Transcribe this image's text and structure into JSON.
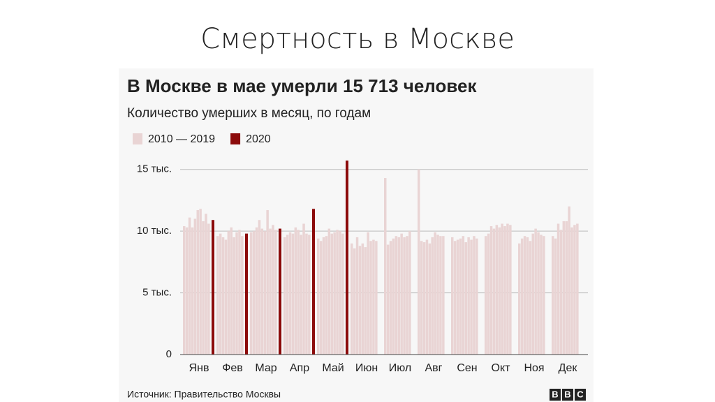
{
  "page_title": "Смертность в Москве",
  "source": "Источник: Правительство Москвы",
  "logo_letters": [
    "B",
    "B",
    "C"
  ],
  "chart_data": {
    "type": "bar",
    "title": "В Москве в мае умерли 15 713 человек",
    "subtitle": "Количество умерших в месяц, по годам",
    "categories": [
      "Янв",
      "Фев",
      "Мар",
      "Апр",
      "Май",
      "Июн",
      "Июл",
      "Авг",
      "Сен",
      "Окт",
      "Ноя",
      "Дек"
    ],
    "series": [
      {
        "name": "2010 — 2019",
        "color": "#e9d4d4",
        "values": [
          [
            10400,
            10300,
            11100,
            10300,
            11000,
            11700,
            11800,
            10800,
            11400,
            10600
          ],
          [
            9600,
            9800,
            9500,
            9300,
            10000,
            10300,
            9500,
            9900,
            10100,
            9600
          ],
          [
            9900,
            10000,
            10300,
            10900,
            10200,
            10000,
            11700,
            10200,
            10500,
            10100
          ],
          [
            9500,
            9700,
            9900,
            9800,
            10300,
            10100,
            9700,
            10600,
            9800,
            9700
          ],
          [
            9400,
            9200,
            9500,
            9600,
            10200,
            9800,
            9900,
            10100,
            10000,
            9800
          ],
          [
            9000,
            8600,
            9500,
            8800,
            9000,
            8700,
            9900,
            9200,
            9300,
            9200
          ],
          [
            14300,
            8900,
            9200,
            9400,
            9600,
            9500,
            9800,
            9500,
            9600,
            10000
          ],
          [
            15000,
            9200,
            9100,
            9300,
            9000,
            9500,
            9900,
            9700,
            9600,
            9600
          ],
          [
            9500,
            9200,
            9300,
            9400,
            9600,
            9100,
            9500,
            9300,
            9600,
            9400
          ],
          [
            9600,
            9800,
            10400,
            10200,
            10500,
            10300,
            10600,
            10400,
            10600,
            10500
          ],
          [
            9000,
            9400,
            9600,
            9500,
            9200,
            9800,
            10200,
            9900,
            9700,
            9600
          ],
          [
            9600,
            9400,
            10600,
            10100,
            10800,
            10800,
            12000,
            10300,
            10500,
            10600
          ]
        ]
      },
      {
        "name": "2020",
        "color": "#8c0b0b",
        "values": [
          10900,
          9800,
          10200,
          11800,
          15713,
          null,
          null,
          null,
          null,
          null,
          null,
          null
        ]
      }
    ],
    "ylim": [
      0,
      16000
    ],
    "yticks": [
      0,
      {
        "value": 5000,
        "label": "5 тыс."
      },
      {
        "value": 10000,
        "label": "10 тыс."
      },
      {
        "value": 15000,
        "label": "15 тыс."
      }
    ],
    "grid": true
  }
}
